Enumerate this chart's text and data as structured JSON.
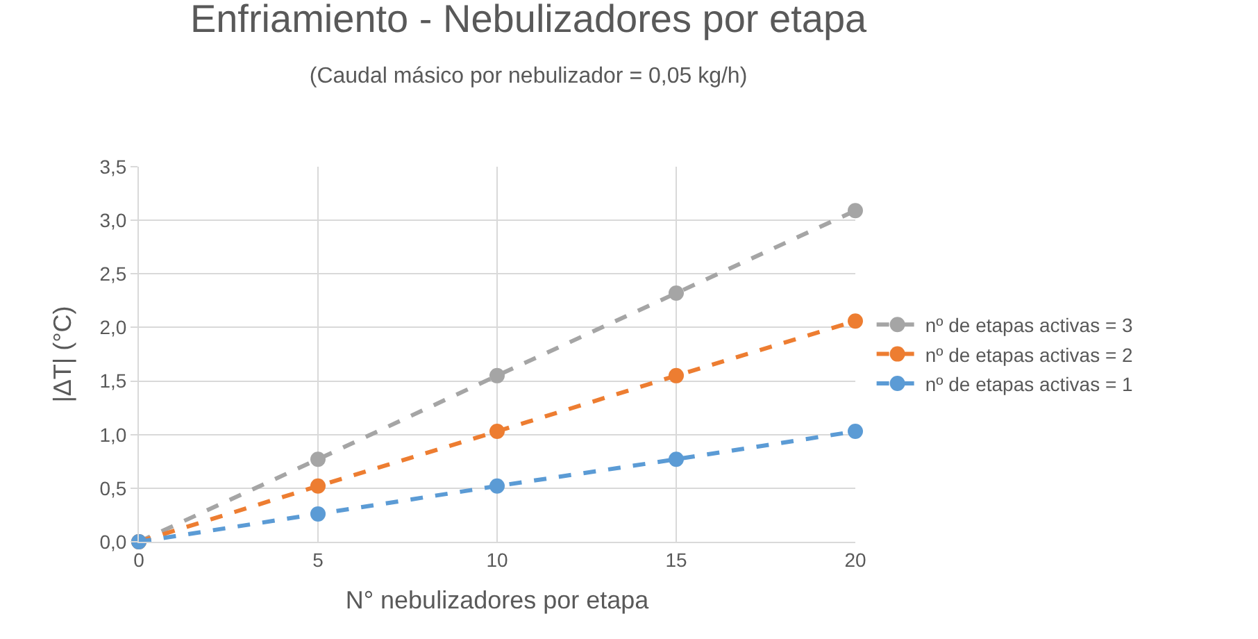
{
  "chart_data": {
    "type": "line",
    "title": "Enfriamiento - Nebulizadores por etapa",
    "subtitle": "(Caudal másico por nebulizador = 0,05 kg/h)",
    "xlabel": "N° nebulizadores por etapa",
    "ylabel": "|ΔT| (°C)",
    "x": [
      0,
      5,
      10,
      15,
      20
    ],
    "series": [
      {
        "name": "nº de etapas activas = 3",
        "color": "#a5a5a5",
        "values": [
          0,
          0.77,
          1.55,
          2.32,
          3.09
        ]
      },
      {
        "name": "nº de etapas activas = 2",
        "color": "#ed7d31",
        "values": [
          0,
          0.52,
          1.03,
          1.55,
          2.06
        ]
      },
      {
        "name": "nº de etapas activas = 1",
        "color": "#5b9bd5",
        "values": [
          0,
          0.26,
          0.52,
          0.77,
          1.03
        ]
      }
    ],
    "xlim": [
      0,
      20
    ],
    "xticks": [
      0,
      5,
      10,
      15,
      20
    ],
    "ylim": [
      0,
      3.5
    ],
    "yticks": [
      {
        "value": 0,
        "label": "0,0"
      },
      {
        "value": 0.5,
        "label": "0,5"
      },
      {
        "value": 1,
        "label": "1,0"
      },
      {
        "value": 1.5,
        "label": "1,5"
      },
      {
        "value": 2,
        "label": "2,0"
      },
      {
        "value": 2.5,
        "label": "2,5"
      },
      {
        "value": 3,
        "label": "3,0"
      },
      {
        "value": 3.5,
        "label": "3,5"
      }
    ],
    "grid": true,
    "legend": "right",
    "marker": "circle",
    "line_style": "dashed"
  }
}
